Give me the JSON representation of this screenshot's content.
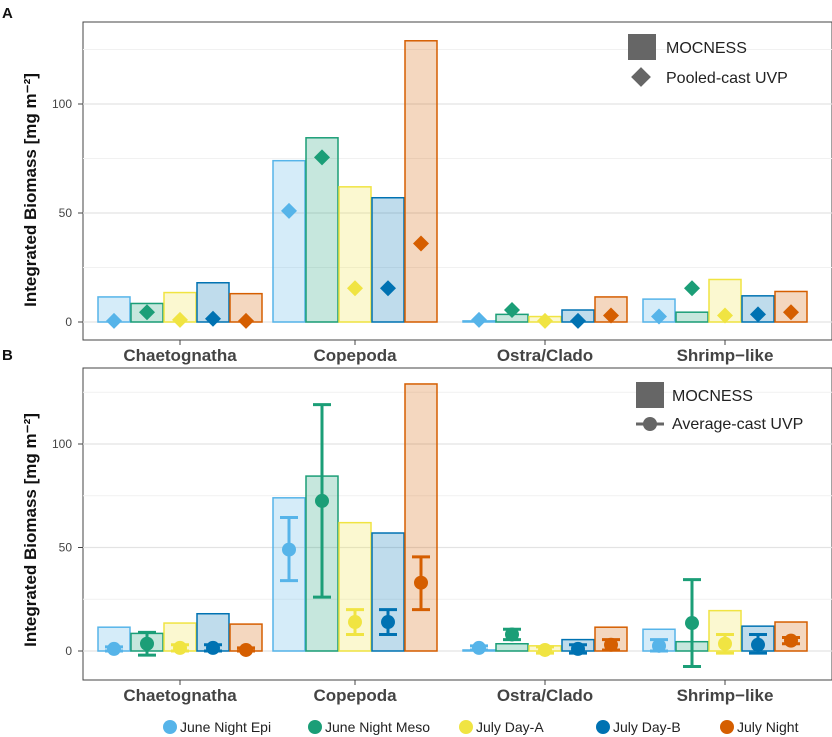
{
  "chart_data": [
    {
      "panel": "A",
      "type": "bar",
      "ylabel": "Integrated Biomass [mg m⁻²]",
      "ylim": [
        -4,
        130
      ],
      "yticks": [
        0,
        50,
        100
      ],
      "grid": true,
      "categories": [
        "Chaetognatha",
        "Copepoda",
        "Ostra/Clado",
        "Shrimp−like"
      ],
      "legend": {
        "position": "top-right",
        "bar_label": "MOCNESS",
        "marker_label": "Pooled-cast UVP"
      },
      "series": [
        {
          "name": "June Night Epi",
          "color": "#56B4E9",
          "bar_values": [
            11.5,
            74,
            0.5,
            10.5
          ],
          "uvp_values": [
            0.5,
            51,
            1,
            2.5
          ]
        },
        {
          "name": "June Night Meso",
          "color": "#1B9E77",
          "bar_values": [
            8.5,
            84.5,
            3.5,
            4.5
          ],
          "uvp_values": [
            4.5,
            75.5,
            5.5,
            15.5
          ]
        },
        {
          "name": "July Day-A",
          "color": "#F0E442",
          "bar_values": [
            13.5,
            62,
            2.5,
            19.5
          ],
          "uvp_values": [
            1,
            15.5,
            0.5,
            3
          ]
        },
        {
          "name": "July Day-B",
          "color": "#0072B2",
          "bar_values": [
            18,
            57,
            5.5,
            12
          ],
          "uvp_values": [
            1.5,
            15.5,
            0.5,
            3.5
          ]
        },
        {
          "name": "July Night",
          "color": "#D55E00",
          "bar_values": [
            13,
            129,
            11.5,
            14
          ],
          "uvp_values": [
            0.5,
            36,
            3,
            4.5
          ]
        }
      ]
    },
    {
      "panel": "B",
      "type": "bar",
      "ylabel": "Integrated Biomass [mg m⁻²]",
      "ylim": [
        -13,
        130
      ],
      "yticks": [
        0,
        50,
        100
      ],
      "grid": true,
      "categories": [
        "Chaetognatha",
        "Copepoda",
        "Ostra/Clado",
        "Shrimp−like"
      ],
      "legend": {
        "position": "top-right",
        "bar_label": "MOCNESS",
        "marker_label": "Average-cast UVP"
      },
      "series": [
        {
          "name": "June Night Epi",
          "color": "#56B4E9",
          "bar_values": [
            11.5,
            74,
            0.5,
            10.5
          ],
          "uvp_mean": [
            1,
            49,
            1.5,
            2.5
          ],
          "uvp_low": [
            0,
            34,
            0.5,
            0
          ],
          "uvp_high": [
            2,
            64.5,
            2.5,
            5.5
          ]
        },
        {
          "name": "June Night Meso",
          "color": "#1B9E77",
          "bar_values": [
            8.5,
            84.5,
            3.5,
            4.5
          ],
          "uvp_mean": [
            3.5,
            72.5,
            8,
            13.5
          ],
          "uvp_low": [
            -2,
            26,
            5.5,
            -7.5
          ],
          "uvp_high": [
            9,
            119,
            10.5,
            34.5
          ]
        },
        {
          "name": "July Day-A",
          "color": "#F0E442",
          "bar_values": [
            13.5,
            62,
            2.5,
            19.5
          ],
          "uvp_mean": [
            1.5,
            14,
            0.5,
            3.5
          ],
          "uvp_low": [
            0,
            8,
            -1,
            -1
          ],
          "uvp_high": [
            3,
            20,
            2,
            8
          ]
        },
        {
          "name": "July Day-B",
          "color": "#0072B2",
          "bar_values": [
            18,
            57,
            5.5,
            12
          ],
          "uvp_mean": [
            1.5,
            14,
            1,
            3
          ],
          "uvp_low": [
            0,
            8,
            -1,
            -1
          ],
          "uvp_high": [
            3,
            20,
            3,
            8
          ]
        },
        {
          "name": "July Night",
          "color": "#D55E00",
          "bar_values": [
            13,
            129,
            11.5,
            14
          ],
          "uvp_mean": [
            0.5,
            33,
            3,
            5
          ],
          "uvp_low": [
            0,
            20,
            0.5,
            3.5
          ],
          "uvp_high": [
            1.5,
            45.5,
            5.5,
            6.5
          ]
        }
      ]
    }
  ],
  "bottom_legend": [
    "June Night Epi",
    "June Night Meso",
    "July Day-A",
    "July Day-B",
    "July Night"
  ],
  "legend_colors": [
    "#56B4E9",
    "#1B9E77",
    "#F0E442",
    "#0072B2",
    "#D55E00"
  ]
}
